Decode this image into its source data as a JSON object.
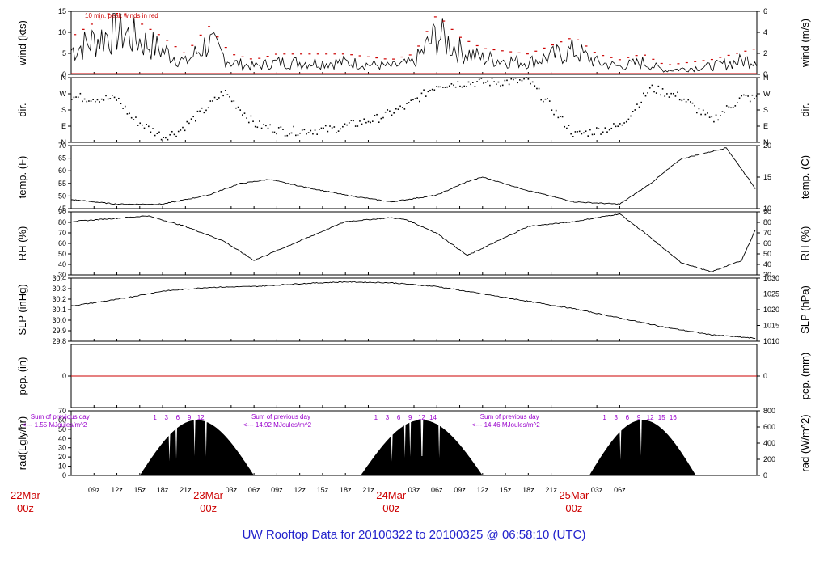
{
  "title": "UW Rooftop Data for 20100322  to  20100325 @ 06:58:10  (UTC)",
  "wind_annotation": "10 min. peak winds in red",
  "chart_data": [
    {
      "type": "line",
      "name": "wind",
      "ylabel_left": "wind (kts)",
      "ylabel_right": "wind (m/s)",
      "ylim": [
        0,
        15
      ],
      "left_ticks": [
        "0",
        "5",
        "10",
        "15"
      ],
      "right_ticks": [
        "0",
        "2",
        "4",
        "6"
      ],
      "time_hours": [
        0,
        6,
        12,
        15,
        18,
        21,
        24,
        27,
        30,
        36,
        42,
        45,
        48,
        51,
        54,
        60,
        66,
        69,
        72,
        75,
        78,
        84,
        90
      ],
      "values": [
        6,
        11,
        6,
        3,
        8,
        3,
        2,
        3,
        3,
        3,
        2,
        3,
        10,
        6,
        4,
        3,
        6,
        3,
        2,
        3,
        1,
        2,
        4
      ],
      "peak_color": "#cc0000"
    },
    {
      "type": "scatter",
      "name": "dir.",
      "ylabel_left": "dir.",
      "ylabel_right": "dir.",
      "ylim": [
        0,
        360
      ],
      "left_ticks": [
        "N",
        "E",
        "S",
        "W",
        "N"
      ],
      "right_ticks": [
        "N",
        "E",
        "S",
        "W",
        "N"
      ],
      "time_hours": [
        0,
        6,
        8,
        12,
        14,
        18,
        20,
        24,
        28,
        34,
        40,
        44,
        48,
        52,
        60,
        66,
        72,
        76,
        80,
        84,
        88,
        90
      ],
      "values": [
        250,
        240,
        130,
        30,
        60,
        200,
        280,
        100,
        60,
        70,
        130,
        200,
        320,
        330,
        340,
        40,
        90,
        300,
        250,
        120,
        250,
        240
      ]
    },
    {
      "type": "line",
      "name": "temp.",
      "ylabel_left": "temp. (F)",
      "ylabel_right": "temp. (C)",
      "ylim": [
        44,
        72
      ],
      "left_ticks": [
        "45",
        "50",
        "55",
        "60",
        "65",
        "70"
      ],
      "right_ticks": [
        "10",
        "15",
        "20"
      ],
      "time_hours": [
        0,
        6,
        12,
        18,
        22,
        26,
        30,
        36,
        42,
        48,
        52,
        54,
        60,
        66,
        72,
        76,
        80,
        86,
        90
      ],
      "values": [
        48,
        46,
        46,
        50,
        55,
        57,
        54,
        50,
        47,
        50,
        56,
        58,
        52,
        47,
        46,
        55,
        66,
        71,
        52
      ]
    },
    {
      "type": "line",
      "name": "RH",
      "ylabel_left": "RH (%)",
      "ylabel_right": "RH (%)",
      "ylim": [
        25,
        90
      ],
      "left_ticks": [
        "30",
        "40",
        "50",
        "60",
        "70",
        "80",
        "90"
      ],
      "right_ticks": [
        "30",
        "40",
        "50",
        "60",
        "70",
        "80",
        "90"
      ],
      "time_hours": [
        0,
        7,
        10,
        15,
        20,
        24,
        30,
        36,
        42,
        44,
        48,
        52,
        56,
        60,
        66,
        72,
        75,
        80,
        84,
        88,
        90
      ],
      "values": [
        80,
        84,
        86,
        75,
        60,
        40,
        60,
        80,
        84,
        82,
        68,
        45,
        60,
        75,
        80,
        88,
        70,
        38,
        28,
        40,
        75
      ]
    },
    {
      "type": "line",
      "name": "SLP",
      "ylabel_left": "SLP (inHg)",
      "ylabel_right": "SLP (hPa)",
      "ylim": [
        29.75,
        30.43
      ],
      "left_ticks": [
        "29.8",
        "29.9",
        "30.0",
        "30.1",
        "30.2",
        "30.3",
        "30.4"
      ],
      "right_ticks": [
        "1010",
        "1015",
        "1020",
        "1025",
        "1030"
      ],
      "time_hours": [
        0,
        6,
        12,
        18,
        24,
        30,
        36,
        42,
        48,
        54,
        60,
        66,
        72,
        78,
        84,
        90
      ],
      "values": [
        30.13,
        30.2,
        30.29,
        30.33,
        30.34,
        30.37,
        30.39,
        30.38,
        30.34,
        30.26,
        30.18,
        30.1,
        30.0,
        29.9,
        29.82,
        29.78
      ]
    },
    {
      "type": "line",
      "name": "pcp.",
      "ylabel_left": "pcp. (in)",
      "ylabel_right": "pcp. (mm)",
      "ylim": [
        -1,
        1
      ],
      "left_ticks": [
        "0"
      ],
      "right_ticks": [
        "0"
      ],
      "time_hours": [
        0,
        90
      ],
      "values": [
        0,
        0
      ],
      "color": "#cc0000"
    },
    {
      "type": "area",
      "name": "rad",
      "ylabel_left": "rad(Lgly/hr)",
      "ylabel_right": "rad (W/m^2)",
      "ylim": [
        0,
        70
      ],
      "left_ticks": [
        "0",
        "10",
        "20",
        "30",
        "40",
        "50",
        "60",
        "70"
      ],
      "right_ticks": [
        "0",
        "200",
        "400",
        "600",
        "800"
      ],
      "days": [
        {
          "start_hour": 9,
          "peak_hour": 18,
          "end_hour": 24,
          "peak": 60,
          "hour_labels": [
            "1",
            "3",
            "6",
            "9",
            "12"
          ],
          "sum_label": "Sum of previous day",
          "sum_value": "<--- 1.55 MJoules/m^2"
        },
        {
          "start_hour": 38,
          "peak_hour": 46,
          "end_hour": 54,
          "peak": 60,
          "hour_labels": [
            "1",
            "3",
            "6",
            "9",
            "12",
            "14"
          ],
          "sum_label": "Sum of previous day",
          "sum_value": "<--- 14.92 MJoules/m^2"
        },
        {
          "start_hour": 68,
          "peak_hour": 76,
          "end_hour": 82,
          "peak": 60,
          "hour_labels": [
            "1",
            "3",
            "6",
            "9",
            "12",
            "15",
            "16"
          ],
          "sum_label": "Sum of previous day",
          "sum_value": "<--- 14.46 MJoules/m^2"
        }
      ]
    }
  ],
  "time_axis": {
    "start_hour_utc": 6,
    "tick_labels": [
      "09z",
      "12z",
      "15z",
      "18z",
      "21z",
      "03z",
      "06z",
      "09z",
      "12z",
      "15z",
      "18z",
      "21z",
      "03z",
      "06z",
      "09z",
      "12z",
      "15z",
      "18z",
      "21z",
      "03z",
      "06z"
    ],
    "tick_hours": [
      3,
      6,
      9,
      12,
      15,
      21,
      24,
      27,
      30,
      33,
      36,
      39,
      45,
      48,
      51,
      54,
      57,
      60,
      63,
      69,
      72
    ],
    "day_labels": [
      {
        "date": "22Mar",
        "time": "00z",
        "hour": -6
      },
      {
        "date": "23Mar",
        "time": "00z",
        "hour": 18
      },
      {
        "date": "24Mar",
        "time": "00z",
        "hour": 42
      },
      {
        "date": "25Mar",
        "time": "00z",
        "hour": 66
      }
    ]
  }
}
